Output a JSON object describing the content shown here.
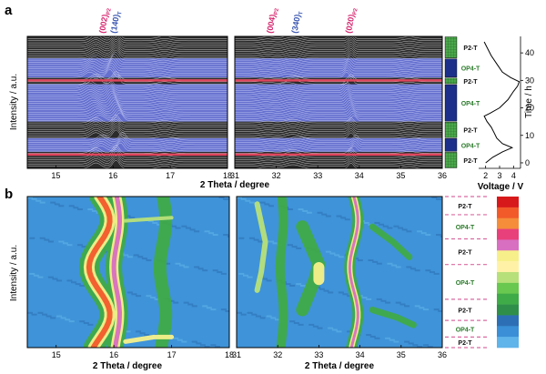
{
  "figure": {
    "panel_a_label": "a",
    "panel_b_label": "b"
  },
  "chart_data": [
    {
      "type": "line",
      "panel": "a",
      "ylabel": "Intensity / a.u.",
      "xlabel": "2 Theta / degree",
      "right_ylabel": "Time / h",
      "voltage_xlabel": "Voltage / V",
      "left_x_ticks": [
        "15",
        "16",
        "17",
        "18"
      ],
      "right_x_ticks": [
        "31",
        "32",
        "33",
        "34",
        "35",
        "36"
      ],
      "voltage_ticks": [
        "2",
        "3",
        "4"
      ],
      "time_ticks": [
        "0",
        "10",
        "20",
        "30",
        "40"
      ],
      "xlim_left": [
        14.5,
        18
      ],
      "xlim_right": [
        31,
        36
      ],
      "xlim_voltage": [
        1.5,
        4.5
      ],
      "ylim_time": [
        -2,
        46
      ],
      "peaks": [
        {
          "label": "(002)",
          "sub": "P2",
          "x": 15.85,
          "color": "#d6256e"
        },
        {
          "label": "(140)",
          "sub": "T",
          "x": 16.05,
          "color": "#3a56b0"
        },
        {
          "label": "(004)",
          "sub": "P2",
          "x": 31.9,
          "color": "#d6256e"
        },
        {
          "label": "(340)",
          "sub": "T",
          "x": 32.5,
          "color": "#3a56b0"
        },
        {
          "label": "(020)",
          "sub": "P2",
          "x": 33.8,
          "color": "#d6256e"
        }
      ],
      "phase_labels": [
        "P2-T",
        "OP4-T",
        "P2-T",
        "OP4-T",
        "P2-T",
        "OP4-T",
        "P2-T"
      ],
      "voltage_profile": {
        "time": [
          0,
          2,
          4,
          5.5,
          7,
          9,
          11,
          13,
          15,
          17,
          18,
          20,
          23,
          26,
          28,
          29.5,
          31,
          33,
          36,
          39,
          42,
          44
        ],
        "voltage": [
          2.0,
          2.5,
          3.2,
          3.9,
          3.2,
          2.8,
          2.6,
          2.4,
          2.1,
          1.9,
          2.3,
          3.0,
          3.6,
          4.0,
          4.3,
          4.4,
          3.8,
          3.2,
          2.8,
          2.4,
          2.1,
          1.9
        ]
      }
    },
    {
      "type": "heatmap",
      "panel": "b",
      "ylabel": "Intensity / a.u.",
      "xlabel": "2 Theta / degree",
      "left_x_ticks": [
        "15",
        "16",
        "17",
        "18"
      ],
      "right_x_ticks": [
        "31",
        "32",
        "33",
        "34",
        "35",
        "36"
      ],
      "xlim_left": [
        14.5,
        18
      ],
      "xlim_right": [
        31,
        36
      ],
      "phase_labels": [
        "P2-T",
        "OP4-T",
        "P2-T",
        "OP4-T",
        "P2-T",
        "OP4-T",
        "P2-T"
      ],
      "colorbar": [
        "#d7191c",
        "#f25a2a",
        "#f58d3a",
        "#e8407a",
        "#d86fc0",
        "#f7f08a",
        "#fff2a6",
        "#b8e07a",
        "#69c84f",
        "#3faa48",
        "#2f8f4a",
        "#2d6fb5",
        "#3a8fd6",
        "#5fb4ea"
      ]
    }
  ],
  "colors": {
    "black_trace": "#111111",
    "blue_band": "#4f5fc8",
    "red_line": "#e0455e",
    "phase_green": "#4aa84a",
    "phase_navy": "#1c2f8a",
    "heat_bg": "#3f93d8"
  }
}
